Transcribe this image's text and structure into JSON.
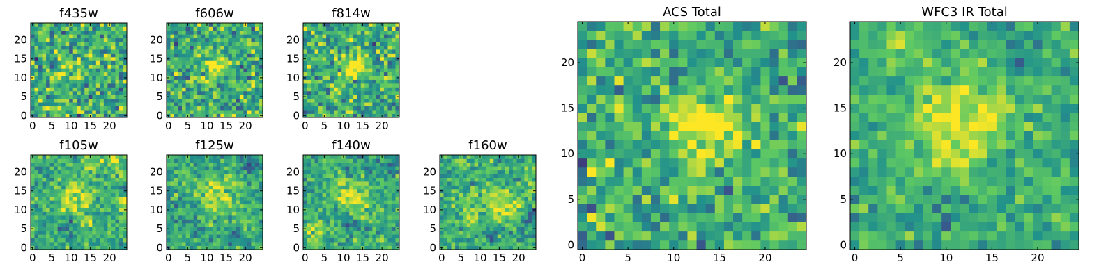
{
  "colormap": [
    "#440154",
    "#3b528b",
    "#21918c",
    "#5ec962",
    "#fde725"
  ],
  "chart_data": [
    {
      "type": "heatmap",
      "title": "f435w",
      "grid_size": 25,
      "xticks": [
        "0",
        "5",
        "10",
        "15",
        "20"
      ],
      "yticks": [
        "0",
        "5",
        "10",
        "15",
        "20"
      ],
      "seed": 11,
      "noise": 0.55,
      "blob": {
        "cx": 12,
        "cy": 13,
        "amp": 0.15,
        "sigma": 3
      },
      "clumps": 0
    },
    {
      "type": "heatmap",
      "title": "f606w",
      "grid_size": 25,
      "xticks": [
        "0",
        "5",
        "10",
        "15",
        "20"
      ],
      "yticks": [
        "0",
        "5",
        "10",
        "15",
        "20"
      ],
      "seed": 23,
      "noise": 0.5,
      "blob": {
        "cx": 12,
        "cy": 13,
        "amp": 0.35,
        "sigma": 2.2
      },
      "clumps": 0
    },
    {
      "type": "heatmap",
      "title": "f814w",
      "grid_size": 25,
      "xticks": [
        "0",
        "5",
        "10",
        "15",
        "20"
      ],
      "yticks": [
        "0",
        "5",
        "10",
        "15",
        "20"
      ],
      "seed": 37,
      "noise": 0.5,
      "blob": {
        "cx": 13,
        "cy": 13,
        "amp": 0.45,
        "sigma": 2.2
      },
      "clumps": 0
    },
    {
      "type": "heatmap",
      "title": "f105w",
      "grid_size": 25,
      "xticks": [
        "0",
        "5",
        "10",
        "15",
        "20"
      ],
      "yticks": [
        "0",
        "5",
        "10",
        "15",
        "20"
      ],
      "seed": 41,
      "noise": 0.35,
      "blob": {
        "cx": 11,
        "cy": 13,
        "amp": 0.3,
        "sigma": 3
      },
      "clumps": 14
    },
    {
      "type": "heatmap",
      "title": "f125w",
      "grid_size": 25,
      "xticks": [
        "0",
        "5",
        "10",
        "15",
        "20"
      ],
      "yticks": [
        "0",
        "5",
        "10",
        "15",
        "20"
      ],
      "seed": 53,
      "noise": 0.35,
      "blob": {
        "cx": 12,
        "cy": 13,
        "amp": 0.3,
        "sigma": 3.2
      },
      "clumps": 14
    },
    {
      "type": "heatmap",
      "title": "f140w",
      "grid_size": 25,
      "xticks": [
        "0",
        "5",
        "10",
        "15",
        "20"
      ],
      "yticks": [
        "0",
        "5",
        "10",
        "15",
        "20"
      ],
      "seed": 67,
      "noise": 0.35,
      "blob": {
        "cx": 13,
        "cy": 12,
        "amp": 0.25,
        "sigma": 3.2
      },
      "clumps": 16
    },
    {
      "type": "heatmap",
      "title": "f160w",
      "grid_size": 25,
      "xticks": [
        "0",
        "5",
        "10",
        "15",
        "20"
      ],
      "yticks": [
        "0",
        "5",
        "10",
        "15",
        "20"
      ],
      "seed": 79,
      "noise": 0.35,
      "blob": {
        "cx": 13,
        "cy": 11,
        "amp": 0.3,
        "sigma": 3.5
      },
      "clumps": 16
    },
    {
      "type": "heatmap",
      "title": "ACS Total",
      "grid_size": 25,
      "xticks": [
        "0",
        "5",
        "10",
        "15",
        "20"
      ],
      "yticks": [
        "0",
        "5",
        "10",
        "15",
        "20"
      ],
      "seed": 97,
      "noise": 0.45,
      "blob": {
        "cx": 13,
        "cy": 13,
        "amp": 0.5,
        "sigma": 2.3
      },
      "clumps": 0
    },
    {
      "type": "heatmap",
      "title": "WFC3 IR Total",
      "grid_size": 25,
      "xticks": [
        "0",
        "5",
        "10",
        "15",
        "20"
      ],
      "yticks": [
        "0",
        "5",
        "10",
        "15",
        "20"
      ],
      "seed": 113,
      "noise": 0.3,
      "blob": {
        "cx": 12,
        "cy": 13,
        "amp": 0.45,
        "sigma": 3.5
      },
      "clumps": 10
    }
  ]
}
